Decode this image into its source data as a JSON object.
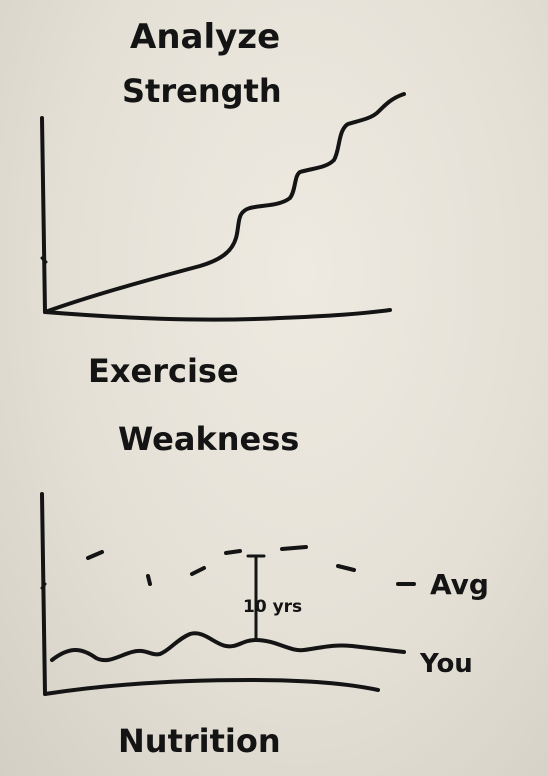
{
  "top_sketch": {
    "title_line1": "Analyze",
    "title_line2": "Strength",
    "xlabel": "Exercise"
  },
  "bottom_sketch": {
    "title": "Weakness",
    "xlabel": "Nutrition",
    "avg_label": "Avg",
    "you_label": "You",
    "gap_label": "10 yrs"
  },
  "ink_color": "#141414"
}
